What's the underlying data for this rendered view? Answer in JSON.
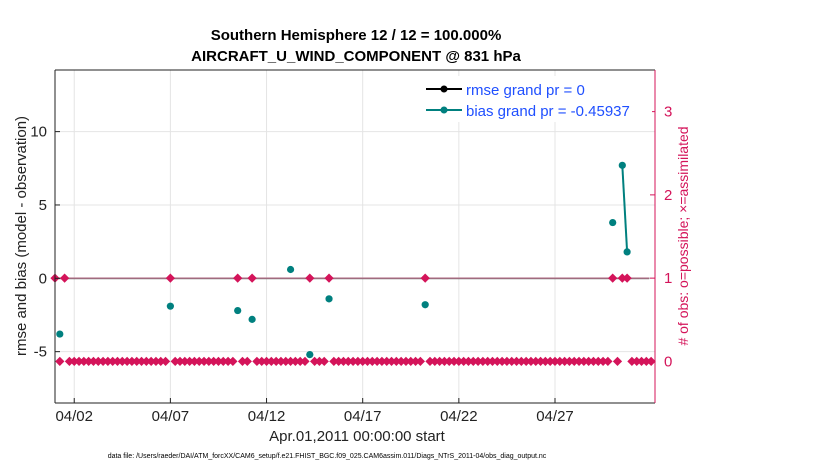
{
  "chart_data": {
    "type": "scatter",
    "title_line1": "Southern Hemisphere 12 / 12 = 100.000%",
    "title_line2": "AIRCRAFT_U_WIND_COMPONENT @ 831 hPa",
    "xlabel": "Apr.01,2011 00:00:00 start",
    "ylabel": "rmse and bias (model - observation)",
    "y2label": "# of obs: o=possible; ×=assimilated",
    "xlim": [
      1.0,
      32.2
    ],
    "ylim": [
      -8.5,
      14.2
    ],
    "y2lim": [
      -0.5,
      3.5
    ],
    "xticks": [
      2,
      7,
      12,
      17,
      22,
      27
    ],
    "xtick_labels": [
      "04/02",
      "04/07",
      "04/12",
      "04/17",
      "04/22",
      "04/27"
    ],
    "yticks": [
      -5,
      0,
      5,
      10
    ],
    "ytick_labels": [
      "-5",
      "0",
      "5",
      "10"
    ],
    "y2ticks": [
      0,
      1,
      2,
      3
    ],
    "y2tick_labels": [
      "0",
      "1",
      "2",
      "3"
    ],
    "grid": true,
    "legend_position": "top-right",
    "series": [
      {
        "name": "rmse grand pr = 0",
        "color": "#000000",
        "axis": "left",
        "points": [
          [
            1.0,
            0
          ],
          [
            31.9,
            0
          ]
        ]
      },
      {
        "name": "bias grand pr = -0.45937",
        "color": "#00807f",
        "axis": "left",
        "points": [
          [
            1.25,
            -3.8
          ],
          [
            7.0,
            -1.9
          ],
          [
            10.5,
            -2.2
          ],
          [
            11.25,
            -2.8
          ],
          [
            13.25,
            0.6
          ],
          [
            14.25,
            -5.2
          ],
          [
            15.25,
            -1.4
          ],
          [
            20.25,
            -1.8
          ],
          [
            30.0,
            3.8
          ],
          [
            30.5,
            7.7
          ],
          [
            30.75,
            1.8
          ]
        ],
        "segments": [
          [
            [
              30.5,
              7.7
            ],
            [
              30.75,
              1.8
            ]
          ]
        ]
      },
      {
        "name": "# possible obs",
        "color": "#d4145a",
        "axis": "right",
        "nonzero": [
          [
            1.0,
            1
          ],
          [
            1.5,
            1
          ],
          [
            7.0,
            1
          ],
          [
            10.5,
            1
          ],
          [
            11.25,
            1
          ],
          [
            14.25,
            1
          ],
          [
            15.25,
            1
          ],
          [
            20.25,
            1
          ],
          [
            30.0,
            1
          ],
          [
            30.5,
            1
          ],
          [
            30.75,
            1
          ]
        ],
        "zero_start": 1.0,
        "zero_end": 32.0,
        "zero_step": 0.25
      }
    ]
  },
  "footer": "data file: /Users/raeder/DAI/ATM_forcXX/CAM6_setup/f.e21.FHIST_BGC.f09_025.CAM6assim.011/Diags_NTrS_2011-04/obs_diag_output.nc"
}
